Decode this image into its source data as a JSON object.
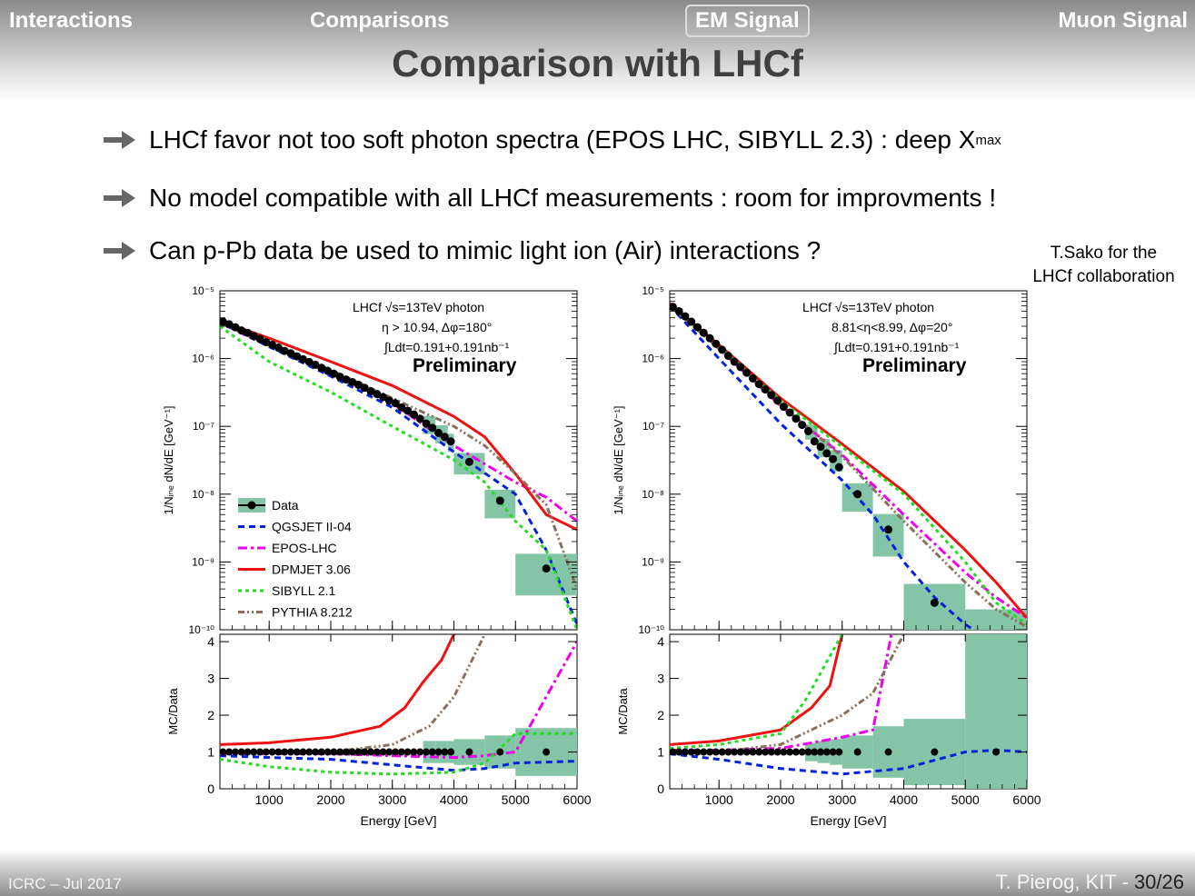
{
  "nav": [
    "Interactions",
    "Comparisons",
    "EM Signal",
    "Muon Signal"
  ],
  "active_nav": "EM Signal",
  "title": "Comparison with LHCf",
  "bullets": {
    "b1_main": "LHCf favor not too soft photon spectra (EPOS LHC, SIBYLL 2.3) : deep X",
    "b1_sub": "max",
    "b2": "No model compatible with all LHCf measurements : room for improvments !",
    "b3": "Can p-Pb data be used to mimic light ion (Air) interactions ?"
  },
  "credit": [
    "T.Sako for the",
    "LHCf collaboration"
  ],
  "footer": {
    "left": "ICRC – Jul 2017",
    "right": "T. Pierog, KIT - ",
    "page": "30/26"
  },
  "colors": {
    "Data": "#000000",
    "QGSJET II-04": "#0022dd",
    "EPOS-LHC": "#ee00ee",
    "DPMJET 3.06": "#ee1111",
    "SIBYLL 2.1": "#22dd22",
    "PYTHIA 8.212": "#8b6f5c",
    "band": "#83c5a6"
  },
  "chart_data": [
    {
      "type": "line",
      "info": [
        "LHCf √s=13TeV photon",
        "η > 10.94, Δφ=180°",
        "∫Ldt=0.191+0.191nb⁻¹"
      ],
      "label": "Preliminary",
      "xlabel": "Energy [GeV]",
      "ylabel": "1/Nᵢₙₑ dN/dE [GeV⁻¹]",
      "ratio_ylabel": "MC/Data",
      "xlim": [
        200,
        6000
      ],
      "ylim": [
        1e-10,
        1e-05
      ],
      "ratio_ylim": [
        0,
        4.2
      ],
      "log_y": true,
      "x_ticks": [
        1000,
        2000,
        3000,
        4000,
        5000,
        6000
      ],
      "y_ticks": [
        "10⁻¹⁰",
        "10⁻⁹",
        "10⁻⁸",
        "10⁻⁷",
        "10⁻⁶",
        "10⁻⁵"
      ],
      "ratio_ticks": [
        0,
        1,
        2,
        3,
        4
      ],
      "legend": [
        "Data",
        "QGSJET II-04",
        "EPOS-LHC",
        "DPMJET 3.06",
        "SIBYLL 2.1",
        "PYTHIA 8.212"
      ],
      "legend_position": "bottom-left",
      "data": {
        "x": [
          250,
          350,
          450,
          550,
          650,
          750,
          850,
          950,
          1050,
          1150,
          1250,
          1350,
          1450,
          1550,
          1650,
          1750,
          1850,
          1950,
          2050,
          2150,
          2250,
          2350,
          2450,
          2550,
          2650,
          2750,
          2850,
          2950,
          3050,
          3150,
          3250,
          3350,
          3450,
          3550,
          3650,
          3750,
          3850,
          3950,
          4250,
          4750,
          5500
        ],
        "y": [
          3.5e-06,
          3.2e-06,
          2.9e-06,
          2.6e-06,
          2.4e-06,
          2.15e-06,
          1.95e-06,
          1.75e-06,
          1.6e-06,
          1.45e-06,
          1.3e-06,
          1.2e-06,
          1.08e-06,
          9.8e-07,
          8.9e-07,
          8.1e-07,
          7.3e-07,
          6.6e-07,
          6e-07,
          5.4e-07,
          4.9e-07,
          4.5e-07,
          4.1e-07,
          3.7e-07,
          3.3e-07,
          3e-07,
          2.7e-07,
          2.4e-07,
          2.2e-07,
          1.9e-07,
          1.7e-07,
          1.5e-07,
          1.3e-07,
          1.1e-07,
          9.5e-08,
          8e-08,
          7e-08,
          6e-08,
          3e-08,
          8e-09,
          8e-10
        ],
        "band_edges": [
          [
            3500,
            3700
          ],
          [
            3700,
            3900
          ],
          [
            3900,
            4000
          ],
          [
            4000,
            4500
          ],
          [
            4500,
            5000
          ],
          [
            5000,
            6000
          ]
        ],
        "band_ratio_halfwidth": [
          0.3,
          0.3,
          0.3,
          0.35,
          0.45,
          0.65
        ]
      },
      "series": [
        {
          "name": "QGSJET II-04",
          "x": [
            200,
            1000,
            2000,
            3000,
            4000,
            5000,
            5500,
            6000
          ],
          "y": [
            3.4e-06,
            1.5e-06,
            5.5e-07,
            1.9e-07,
            4.2e-08,
            1e-08,
            1.5e-09,
            1.2e-10
          ],
          "ratio_x": [
            200,
            1000,
            2000,
            3000,
            4000,
            4500,
            5000,
            6000
          ],
          "ratio": [
            0.9,
            0.85,
            0.8,
            0.65,
            0.5,
            0.55,
            0.7,
            0.75
          ]
        },
        {
          "name": "EPOS-LHC",
          "x": [
            200,
            1000,
            2000,
            3000,
            4000,
            5000,
            5500,
            6000
          ],
          "y": [
            3.4e-06,
            1.6e-06,
            6.2e-07,
            2.2e-07,
            5.2e-08,
            1.5e-08,
            9e-09,
            4e-09
          ],
          "ratio_x": [
            200,
            1000,
            2000,
            3000,
            4000,
            4500,
            5000,
            6000
          ],
          "ratio": [
            0.95,
            0.95,
            0.95,
            0.9,
            0.85,
            0.9,
            1.0,
            4.0
          ]
        },
        {
          "name": "DPMJET 3.06",
          "x": [
            200,
            1000,
            2000,
            3000,
            4000,
            4500,
            5000,
            5500,
            6000
          ],
          "y": [
            3.6e-06,
            2e-06,
            9e-07,
            4e-07,
            1.4e-07,
            7e-08,
            2e-08,
            5e-09,
            3e-09
          ],
          "ratio_x": [
            200,
            1000,
            2000,
            2800,
            3200,
            3500,
            3800,
            4000
          ],
          "ratio": [
            1.2,
            1.25,
            1.4,
            1.7,
            2.2,
            2.9,
            3.5,
            4.2
          ]
        },
        {
          "name": "SIBYLL 2.1",
          "x": [
            200,
            1000,
            2000,
            3000,
            4000,
            4500,
            5000,
            5500,
            6000
          ],
          "y": [
            3e-06,
            9e-07,
            3.2e-07,
            1e-07,
            3.2e-08,
            1.5e-08,
            4e-09,
            1.5e-09,
            1e-10
          ],
          "ratio_x": [
            200,
            1000,
            2000,
            3000,
            4000,
            4500,
            5000,
            6000
          ],
          "ratio": [
            0.8,
            0.6,
            0.45,
            0.4,
            0.45,
            0.7,
            1.5,
            1.5
          ]
        },
        {
          "name": "PYTHIA 8.212",
          "x": [
            200,
            1000,
            2000,
            3000,
            4000,
            4500,
            5000,
            5500,
            6000
          ],
          "y": [
            3.5e-06,
            1.6e-06,
            6.8e-07,
            2.6e-07,
            1e-07,
            5.2e-08,
            2e-08,
            7e-09,
            4e-10
          ],
          "ratio_x": [
            200,
            1000,
            2000,
            3000,
            3600,
            4000,
            4500
          ],
          "ratio": [
            1.0,
            1.0,
            1.0,
            1.2,
            1.7,
            2.5,
            4.2
          ]
        }
      ]
    },
    {
      "type": "line",
      "info": [
        "LHCf √s=13TeV photon",
        "8.81<η<8.99, Δφ=20°",
        "∫Ldt=0.191+0.191nb⁻¹"
      ],
      "label": "Preliminary",
      "xlabel": "Energy [GeV]",
      "ylabel": "1/Nᵢₙₑ dN/dE [GeV⁻¹]",
      "ratio_ylabel": "MC/Data",
      "xlim": [
        200,
        6000
      ],
      "ylim": [
        1e-10,
        1e-05
      ],
      "ratio_ylim": [
        0,
        4.2
      ],
      "log_y": true,
      "x_ticks": [
        1000,
        2000,
        3000,
        4000,
        5000,
        6000
      ],
      "y_ticks": [
        "10⁻¹⁰",
        "10⁻⁹",
        "10⁻⁸",
        "10⁻⁷",
        "10⁻⁶",
        "10⁻⁵"
      ],
      "ratio_ticks": [
        0,
        1,
        2,
        3,
        4
      ],
      "data": {
        "x": [
          250,
          350,
          450,
          550,
          650,
          750,
          850,
          950,
          1050,
          1150,
          1250,
          1350,
          1450,
          1550,
          1650,
          1750,
          1850,
          1950,
          2050,
          2150,
          2250,
          2350,
          2450,
          2550,
          2650,
          2750,
          2850,
          2950,
          3250,
          3750,
          4500,
          5500
        ],
        "y": [
          5.8e-06,
          5e-06,
          4.2e-06,
          3.5e-06,
          2.9e-06,
          2.4e-06,
          2e-06,
          1.65e-06,
          1.35e-06,
          1.1e-06,
          9e-07,
          7.5e-07,
          6.2e-07,
          5.1e-07,
          4.2e-07,
          3.5e-07,
          2.9e-07,
          2.4e-07,
          1.95e-07,
          1.6e-07,
          1.3e-07,
          1.05e-07,
          8.5e-08,
          6e-08,
          5e-08,
          4e-08,
          3.3e-08,
          2.5e-08,
          1e-08,
          3e-09,
          2.5e-10,
          4e-11
        ],
        "band_edges": [
          [
            2400,
            2600
          ],
          [
            2600,
            2800
          ],
          [
            2800,
            3000
          ],
          [
            3000,
            3500
          ],
          [
            3500,
            4000
          ],
          [
            4000,
            5000
          ],
          [
            5000,
            6000
          ]
        ],
        "band_ratio_halfwidth": [
          0.25,
          0.3,
          0.35,
          0.45,
          0.7,
          0.9,
          4.0
        ]
      },
      "series": [
        {
          "name": "QGSJET II-04",
          "x": [
            200,
            1000,
            2000,
            3000,
            3500,
            4000,
            4500,
            5000,
            5500
          ],
          "y": [
            6e-06,
            1e-06,
            1.1e-07,
            1.6e-08,
            5e-09,
            1e-09,
            3e-10,
            1.2e-10,
            2e-11
          ],
          "ratio_x": [
            200,
            1000,
            2000,
            3000,
            4000,
            5000,
            5500,
            6000
          ],
          "ratio": [
            0.95,
            0.8,
            0.55,
            0.4,
            0.55,
            1.0,
            1.05,
            1.0
          ]
        },
        {
          "name": "EPOS-LHC",
          "x": [
            200,
            1000,
            2000,
            3000,
            4000,
            5000,
            5500,
            6000
          ],
          "y": [
            6.2e-06,
            1.4e-06,
            2e-07,
            3.8e-08,
            5e-09,
            7e-10,
            3e-10,
            1.5e-10
          ],
          "ratio_x": [
            200,
            1000,
            2000,
            3000,
            3500,
            3800
          ],
          "ratio": [
            1.05,
            1.05,
            1.1,
            1.4,
            1.6,
            4.2
          ]
        },
        {
          "name": "DPMJET 3.06",
          "x": [
            200,
            1000,
            2000,
            3000,
            4000,
            5000,
            5500,
            6000
          ],
          "y": [
            6.5e-06,
            1.6e-06,
            2.6e-07,
            5.5e-08,
            1.1e-08,
            1.5e-09,
            5e-10,
            1.5e-10
          ],
          "ratio_x": [
            200,
            1000,
            2000,
            2500,
            2800,
            3000
          ],
          "ratio": [
            1.2,
            1.3,
            1.6,
            2.2,
            2.8,
            4.2
          ]
        },
        {
          "name": "SIBYLL 2.1",
          "x": [
            200,
            1000,
            2000,
            3000,
            4000,
            5000,
            5500,
            6000
          ],
          "y": [
            6.2e-06,
            1.5e-06,
            2.4e-07,
            5e-08,
            1e-08,
            1e-09,
            2.5e-10,
            1.2e-10
          ],
          "ratio_x": [
            200,
            1000,
            2000,
            2400,
            2700,
            3000
          ],
          "ratio": [
            1.1,
            1.2,
            1.5,
            2.4,
            3.3,
            4.2
          ]
        },
        {
          "name": "PYTHIA 8.212",
          "x": [
            200,
            1000,
            2000,
            3000,
            4000,
            5000,
            5500,
            6000
          ],
          "y": [
            6e-06,
            1.4e-06,
            2.1e-07,
            3.6e-08,
            4e-09,
            5e-10,
            2e-10,
            1.1e-10
          ],
          "ratio_x": [
            200,
            1000,
            2000,
            3000,
            3500,
            4000
          ],
          "ratio": [
            1.0,
            1.0,
            1.2,
            2.0,
            2.6,
            4.2
          ]
        }
      ]
    }
  ]
}
